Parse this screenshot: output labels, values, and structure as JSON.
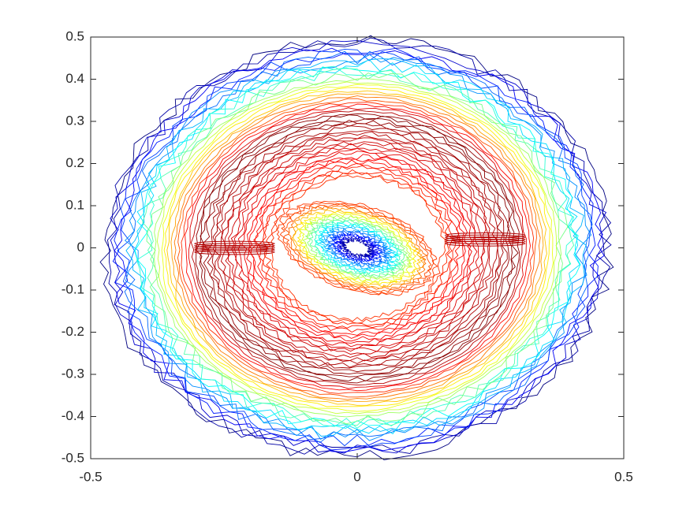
{
  "chart_data": {
    "type": "contour",
    "colormap": "jet",
    "xlim": [
      -0.5,
      0.5
    ],
    "ylim": [
      -0.5,
      0.5
    ],
    "xticks": [
      -0.5,
      0,
      0.5
    ],
    "yticks": [
      -0.5,
      -0.4,
      -0.3,
      -0.2,
      -0.1,
      0,
      0.1,
      0.2,
      0.3,
      0.4,
      0.5
    ]
  }
}
